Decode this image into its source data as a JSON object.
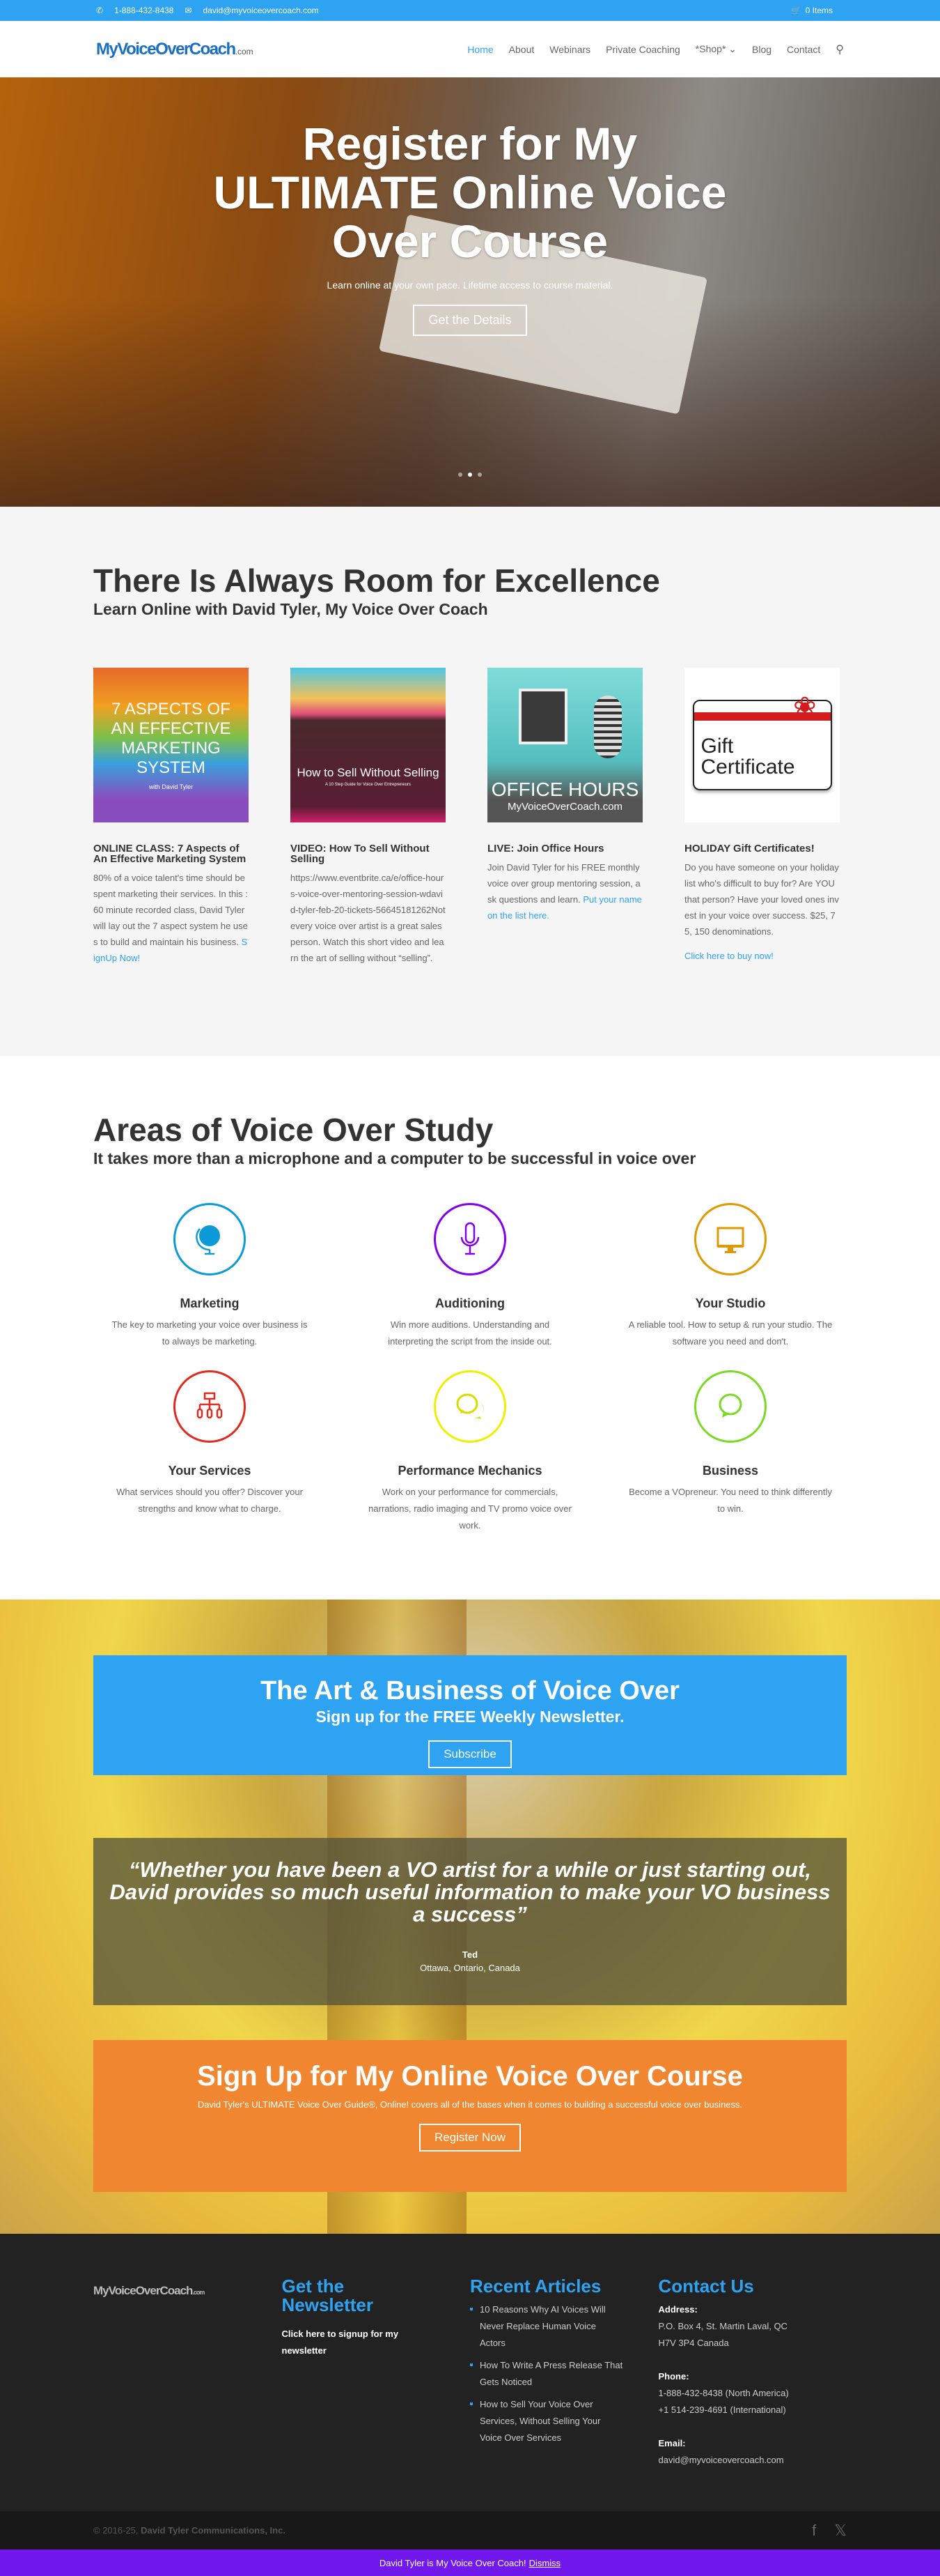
{
  "topbar": {
    "phone": "1-888-432-8438",
    "email": "david@myvoiceovercoach.com",
    "cart": "0 Items"
  },
  "header": {
    "logo": "MyVoiceOverCoach",
    "logo_suffix": ".com",
    "nav": [
      "Home",
      "About",
      "Webinars",
      "Private Coaching",
      "*Shop*",
      "Blog",
      "Contact"
    ]
  },
  "hero": {
    "title": "Register for My ULTIMATE Online Voice Over Course",
    "subtitle": "Learn online at your own pace. Lifetime access to course material.",
    "button": "Get the Details",
    "slides": 3,
    "active_slide": 2
  },
  "excellence": {
    "title": "There Is Always Room for Excellence",
    "subtitle": "Learn Online with David Tyler, My Voice Over Coach",
    "cards": [
      {
        "img_text": "7 ASPECTS OF AN EFFECTIVE MARKETING SYSTEM",
        "img_sub": "with David Tyler",
        "title": "ONLINE CLASS: 7 Aspects of An Effective Marketing System",
        "body": "80% of a voice talent's time should be spent marketing their services. In this :60 minute recorded class, David Tyler will lay out the 7 aspect system he uses to build and maintain his business.",
        "link": "SignUp Now!"
      },
      {
        "img_text": "How to Sell Without Selling",
        "img_sub": "A 10 Step Guide for Voice Over Entrepreneurs",
        "title": "VIDEO: How To Sell Without Selling",
        "body": "https://www.eventbrite.ca/e/office-hours-voice-over-mentoring-session-wdavid-tyler-feb-20-tickets-56645181262Not every voice over artist is a great salesperson. Watch this short video and learn the art of selling without “selling”.",
        "link": ""
      },
      {
        "img_text": "OFFICE HOURS",
        "img_sub": "MyVoiceOverCoach.com",
        "title": "LIVE: Join Office Hours",
        "body": "Join David Tyler for his FREE monthly voice over group mentoring session, ask questions and learn.",
        "link": "Put your name on the list here."
      },
      {
        "img_text": "Gift Certificate",
        "img_sub": "",
        "title": "HOLIDAY Gift Certificates!",
        "body": "Do you have someone on your holiday list who's difficult to buy for? Are YOU that person? Have your loved ones invest in your voice over success. $25, 75, 150 denominations.",
        "link": "Click here to buy now!"
      }
    ]
  },
  "areas": {
    "title": "Areas of Voice Over Study",
    "subtitle": "It takes more than a microphone and a computer to be successful in voice over",
    "items": [
      {
        "icon": "globe-icon",
        "color": "#0c9bd6",
        "title": "Marketing",
        "body": "The key to marketing your voice over business is to always be marketing."
      },
      {
        "icon": "microphone-icon",
        "color": "#8300e9",
        "title": "Auditioning",
        "body": "Win more auditions. Understanding and interpreting the script from the inside out."
      },
      {
        "icon": "monitor-icon",
        "color": "#e09900",
        "title": "Your Studio",
        "body": "A reliable tool. How to setup & run your studio. The software you need and don't."
      },
      {
        "icon": "sitemap-icon",
        "color": "#e02b20",
        "title": "Your Services",
        "body": "What services should you offer? Discover your strengths and know what to charge."
      },
      {
        "icon": "chat-bubbles-icon",
        "color": "#edf000",
        "title": "Performance Mechanics",
        "body": "Work on your performance for commercials, narrations, radio imaging and TV promo voice over work."
      },
      {
        "icon": "chat-bubble-icon",
        "color": "#7cda24",
        "title": "Business",
        "body": "Become a VOpreneur. You need to think differently to win."
      }
    ]
  },
  "newsletter": {
    "title": "The Art & Business of Voice Over",
    "subtitle": "Sign up for the FREE Weekly Newsletter.",
    "button": "Subscribe"
  },
  "testimonial": {
    "quote": "“Whether you have been a VO artist for a while or just starting out, David provides so much useful information to make your VO business a success”",
    "name": "Ted",
    "location": "Ottawa, Ontario, Canada"
  },
  "course": {
    "title": "Sign Up for My Online Voice Over Course",
    "body": "David Tyler's ULTIMATE Voice Over Guide®, Online! covers all of the bases when it comes to building a successful voice over business.",
    "button": "Register Now"
  },
  "footer": {
    "logo": "MyVoiceOverCoach",
    "logo_suffix": ".com",
    "newsletter_title": "Get the Newsletter",
    "newsletter_link": "Click here to signup for my newsletter",
    "articles_title": "Recent Articles",
    "articles": [
      "10 Reasons Why AI Voices Will Never Replace Human Voice Actors",
      "How To Write A Press Release That Gets Noticed",
      "How to Sell Your Voice Over Services, Without Selling Your Voice Over Services"
    ],
    "contact_title": "Contact Us",
    "address_label": "Address:",
    "address": [
      "P.O. Box 4, St. Martin Laval, QC",
      "H7V 3P4 Canada"
    ],
    "phone_label": "Phone:",
    "phones": [
      "1-888-432-8438 (North America)",
      "+1 514-239-4691 (International)"
    ],
    "email_label": "Email:",
    "email": "david@myvoiceovercoach.com"
  },
  "bottom": {
    "copyright": "© 2016-25,",
    "company": "David Tyler Communications, Inc."
  },
  "notice": {
    "text": "David Tyler is My Voice Over Coach!",
    "dismiss": "Dismiss"
  },
  "colors": {
    "primary": "#2ea3f2",
    "orange": "#f0862f",
    "purple": "#7118ed",
    "footer": "#222222"
  }
}
